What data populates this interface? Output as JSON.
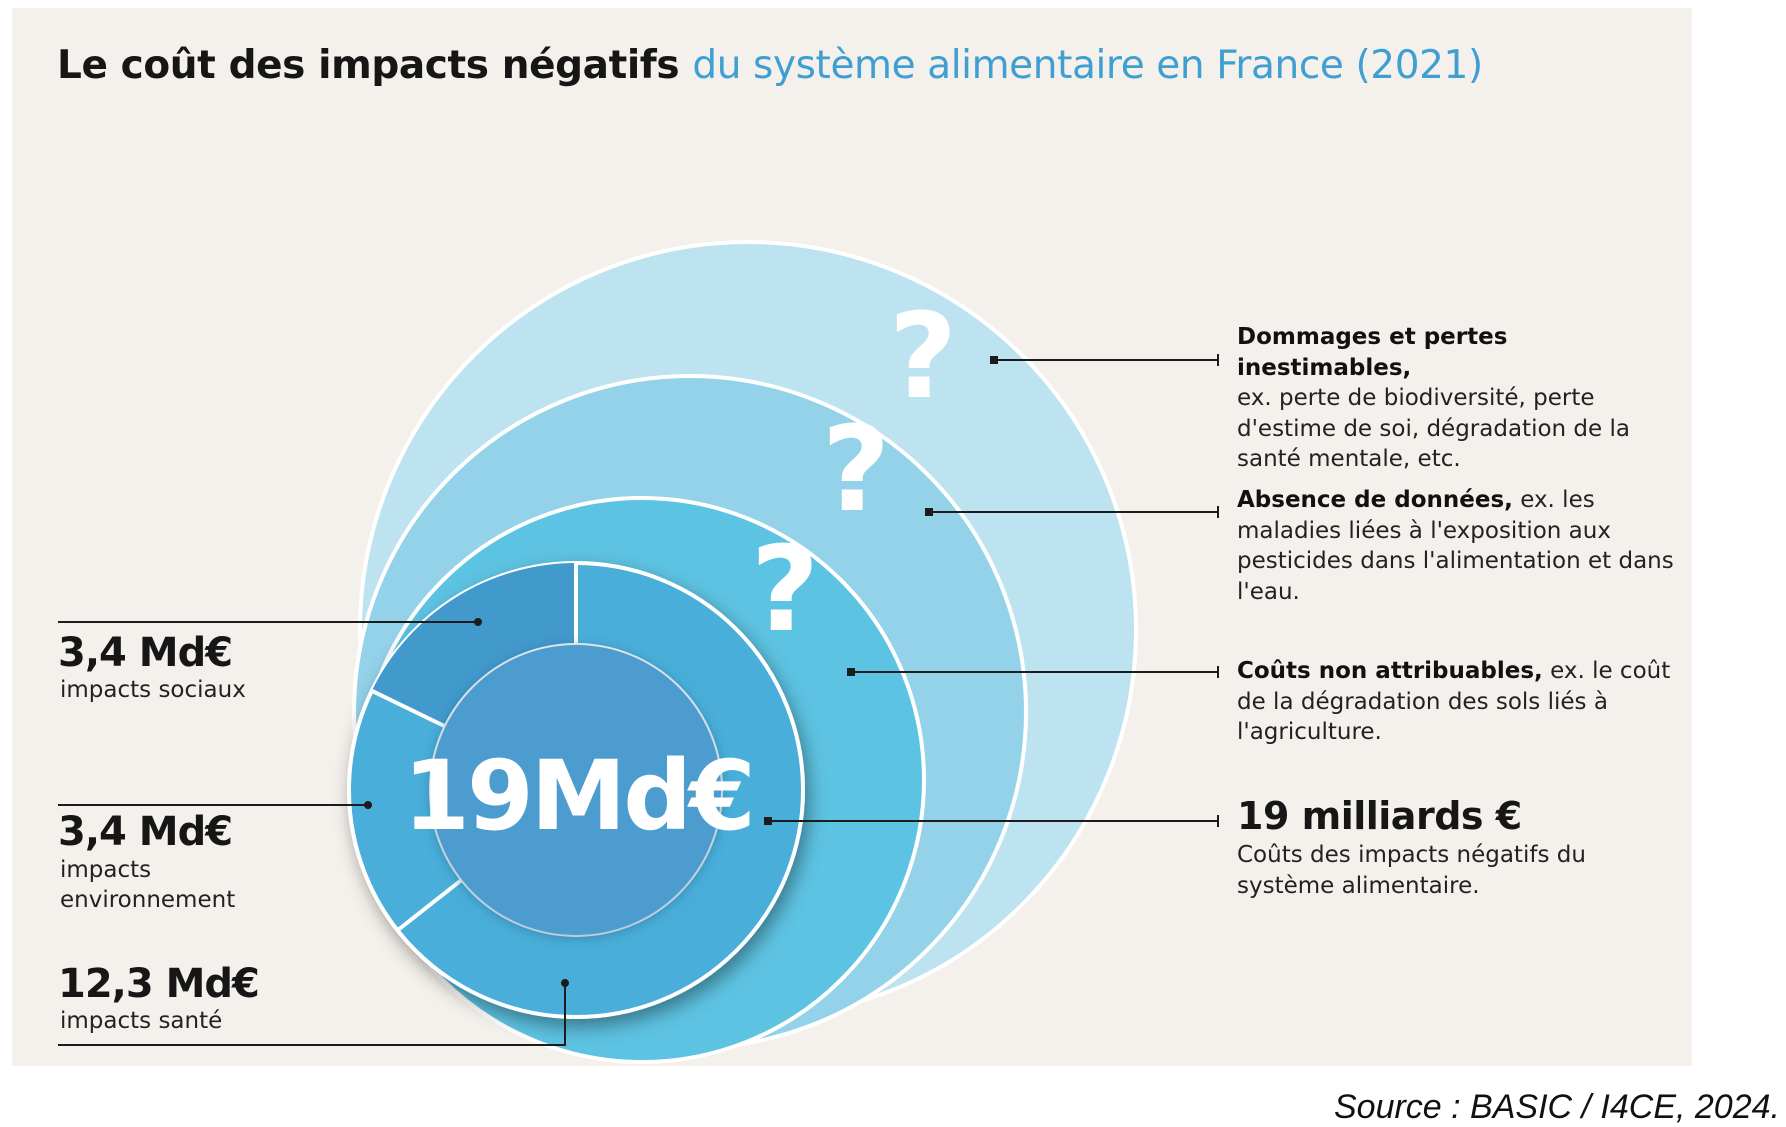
{
  "title": {
    "part1": "Le coût des impacts négatifs",
    "part2": "du système alimentaire en France (2021)"
  },
  "center_label": "19Md€",
  "question_mark": "?",
  "chart_data": {
    "type": "donut",
    "total": 19,
    "unit": "Md€",
    "segments": [
      {
        "value_text": "3,4 Md€",
        "label": "impacts sociaux",
        "value": 3.4
      },
      {
        "value_text": "3,4 Md€",
        "label": "impacts\nenvironnement",
        "value": 3.4
      },
      {
        "value_text": "12,3 Md€",
        "label": "impacts santé",
        "value": 12.3
      }
    ]
  },
  "notes": [
    {
      "bold": "Dommages et pertes inestimables,",
      "text": "ex. perte de biodiversité, perte d'estime de soi, dégradation de la santé mentale, etc."
    },
    {
      "bold": "Absence de données,",
      "text": "ex. les maladies liées à l'exposition aux pesticides dans l'alimentation et dans l'eau."
    },
    {
      "bold": "Coûts non attribuables,",
      "text": "ex. le coût de la dégradation des sols liés à l'agriculture."
    }
  ],
  "total": {
    "heading": "19 milliards €",
    "description": "Coûts des impacts négatifs du système alimentaire."
  },
  "source": "Source : BASIC / I4CE, 2024.",
  "colors": {
    "title_accent": "#3f9fd3",
    "circle_outer": "#bde2f0",
    "circle_second": "#94d2ea",
    "circle_third": "#5dc3e2",
    "donut_ring": "#4aaed9",
    "donut_segment_social": "#4399cc",
    "donut_center": "#4d9ccf",
    "background": "#f4f1ec"
  }
}
